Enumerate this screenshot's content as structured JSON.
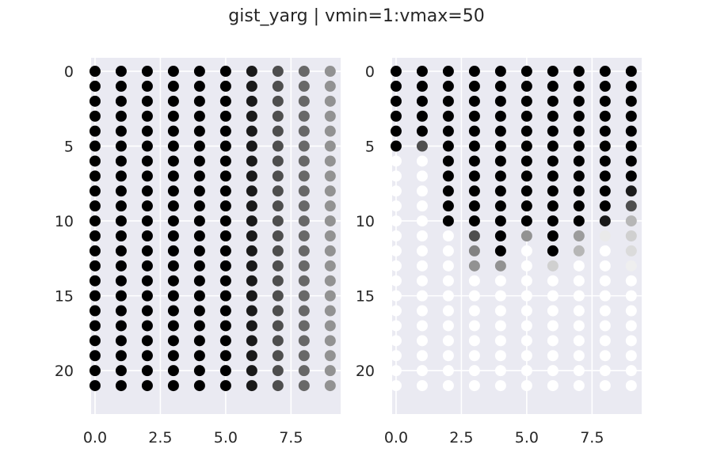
{
  "title": "gist_yarg | vmin=1:vmax=50",
  "style": {
    "panel_background": "#EAEAF2",
    "grid_color": "#FFFFFF",
    "text_color": "#262626",
    "colormap": "gist_yarg"
  },
  "chart_data": [
    {
      "type": "scatter",
      "colormap": "gist_yarg",
      "vmin": 1,
      "vmax": 50,
      "xlim": [
        -0.15,
        9.4
      ],
      "ylim": [
        22.9,
        -0.9
      ],
      "y_inverted": true,
      "grid": true,
      "xticks": [
        0.0,
        2.5,
        5.0,
        7.5
      ],
      "xtick_labels": [
        "0.0",
        "2.5",
        "5.0",
        "7.5"
      ],
      "yticks": [
        0,
        5,
        10,
        15,
        20
      ],
      "ytick_labels": [
        "0",
        "5",
        "10",
        "15",
        "20"
      ],
      "x": [
        0,
        1,
        2,
        3,
        4,
        5,
        6,
        7,
        8,
        9
      ],
      "y": [
        0,
        1,
        2,
        3,
        4,
        5,
        6,
        7,
        8,
        9,
        10,
        11,
        12,
        13,
        14,
        15,
        16,
        17,
        18,
        19,
        20,
        21
      ],
      "values": [
        [
          50,
          50,
          50,
          50,
          50,
          50,
          50,
          50,
          50,
          50,
          50,
          50,
          50,
          50,
          50,
          50,
          50,
          50,
          50,
          50,
          50,
          50
        ],
        [
          50,
          50,
          50,
          50,
          50,
          50,
          50,
          50,
          50,
          50,
          50,
          50,
          50,
          50,
          50,
          50,
          50,
          50,
          50,
          50,
          50,
          50
        ],
        [
          50,
          50,
          50,
          50,
          50,
          50,
          50,
          50,
          50,
          50,
          50,
          50,
          50,
          50,
          50,
          50,
          50,
          50,
          50,
          50,
          50,
          50
        ],
        [
          50,
          50,
          50,
          50,
          50,
          50,
          50,
          50,
          50,
          50,
          50,
          50,
          50,
          50,
          50,
          50,
          50,
          50,
          50,
          50,
          50,
          50
        ],
        [
          50,
          50,
          50,
          50,
          50,
          50,
          50,
          50,
          50,
          50,
          50,
          50,
          50,
          50,
          50,
          50,
          50,
          50,
          50,
          50,
          50,
          50
        ],
        [
          50,
          50,
          50,
          50,
          50,
          50,
          50,
          50,
          50,
          50,
          50,
          50,
          50,
          50,
          50,
          50,
          50,
          50,
          50,
          50,
          50,
          50
        ],
        [
          45,
          45,
          45,
          45,
          45,
          45,
          45,
          45,
          45,
          45,
          45,
          45,
          45,
          45,
          45,
          45,
          45,
          45,
          45,
          45,
          45,
          45
        ],
        [
          35,
          35,
          35,
          35,
          35,
          35,
          35,
          35,
          35,
          35,
          35,
          35,
          35,
          35,
          35,
          35,
          35,
          35,
          35,
          35,
          35,
          35
        ],
        [
          30,
          30,
          30,
          30,
          30,
          30,
          30,
          30,
          30,
          30,
          30,
          30,
          30,
          30,
          30,
          30,
          30,
          30,
          30,
          30,
          30,
          30
        ],
        [
          22,
          22,
          22,
          22,
          22,
          22,
          22,
          22,
          22,
          22,
          22,
          22,
          22,
          22,
          22,
          22,
          22,
          22,
          22,
          22,
          22,
          22
        ]
      ]
    },
    {
      "type": "scatter",
      "colormap": "gist_yarg",
      "vmin": 1,
      "vmax": 50,
      "xlim": [
        -0.15,
        9.4
      ],
      "ylim": [
        22.9,
        -0.9
      ],
      "y_inverted": true,
      "grid": true,
      "xticks": [
        0.0,
        2.5,
        5.0,
        7.5
      ],
      "xtick_labels": [
        "0.0",
        "2.5",
        "5.0",
        "7.5"
      ],
      "yticks": [
        0,
        5,
        10,
        15,
        20
      ],
      "ytick_labels": [
        "0",
        "5",
        "10",
        "15",
        "20"
      ],
      "x": [
        0,
        1,
        2,
        3,
        4,
        5,
        6,
        7,
        8,
        9
      ],
      "y": [
        0,
        1,
        2,
        3,
        4,
        5,
        6,
        7,
        8,
        9,
        10,
        11,
        12,
        13,
        14,
        15,
        16,
        17,
        18,
        19,
        20,
        21
      ],
      "values": [
        [
          50,
          50,
          50,
          50,
          50,
          50,
          1,
          1,
          1,
          1,
          1,
          1,
          1,
          1,
          1,
          1,
          1,
          1,
          1,
          1,
          1,
          1
        ],
        [
          50,
          50,
          50,
          50,
          50,
          35,
          1,
          1,
          1,
          1,
          1,
          1,
          1,
          1,
          1,
          1,
          1,
          1,
          1,
          1,
          1,
          1
        ],
        [
          50,
          50,
          50,
          50,
          50,
          50,
          50,
          50,
          50,
          50,
          50,
          1,
          1,
          1,
          1,
          1,
          1,
          1,
          1,
          1,
          1,
          1
        ],
        [
          50,
          50,
          50,
          50,
          50,
          50,
          50,
          50,
          50,
          50,
          50,
          35,
          25,
          22,
          1,
          1,
          1,
          1,
          1,
          1,
          1,
          1
        ],
        [
          50,
          50,
          50,
          50,
          50,
          50,
          50,
          50,
          50,
          50,
          50,
          50,
          50,
          22,
          1,
          1,
          1,
          1,
          1,
          1,
          1,
          1
        ],
        [
          50,
          50,
          50,
          50,
          50,
          50,
          50,
          50,
          50,
          50,
          50,
          22,
          1,
          1,
          1,
          1,
          1,
          1,
          1,
          1,
          1,
          1
        ],
        [
          50,
          50,
          50,
          50,
          50,
          50,
          50,
          50,
          50,
          50,
          50,
          50,
          50,
          10,
          1,
          1,
          1,
          1,
          1,
          1,
          1,
          1
        ],
        [
          50,
          50,
          50,
          50,
          50,
          50,
          50,
          50,
          50,
          50,
          50,
          20,
          15,
          1,
          1,
          1,
          1,
          1,
          1,
          1,
          1,
          1
        ],
        [
          50,
          50,
          50,
          50,
          50,
          50,
          50,
          50,
          50,
          50,
          45,
          5,
          1,
          1,
          1,
          1,
          1,
          1,
          1,
          1,
          1,
          1
        ],
        [
          50,
          50,
          50,
          50,
          50,
          50,
          50,
          50,
          45,
          35,
          15,
          10,
          8,
          4,
          1,
          1,
          1,
          1,
          1,
          1,
          1,
          1
        ]
      ]
    }
  ]
}
